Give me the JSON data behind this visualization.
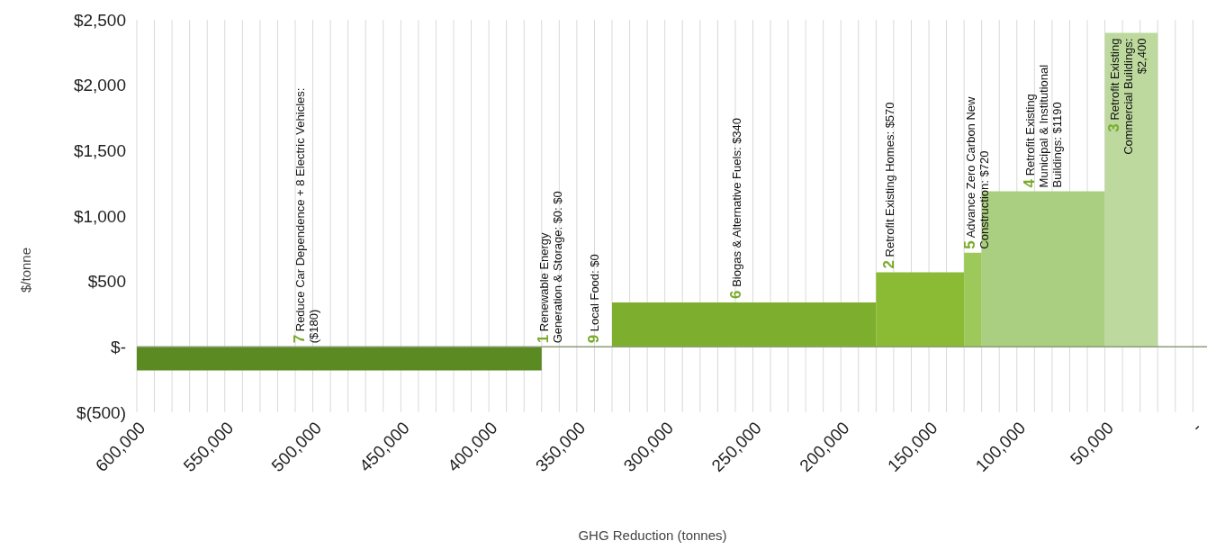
{
  "chart_data": {
    "type": "area",
    "xlabel": "GHG Reduction (tonnes)",
    "ylabel": "$/tonne",
    "xlim": [
      600000,
      -8000
    ],
    "ylim": [
      -500,
      2500
    ],
    "xticks": [
      {
        "value": 600000,
        "label": "600,000"
      },
      {
        "value": 590000,
        "label": null
      },
      {
        "value": 580000,
        "label": null
      },
      {
        "value": 570000,
        "label": null
      },
      {
        "value": 560000,
        "label": null
      },
      {
        "value": 550000,
        "label": "550,000"
      },
      {
        "value": 540000,
        "label": null
      },
      {
        "value": 530000,
        "label": null
      },
      {
        "value": 520000,
        "label": null
      },
      {
        "value": 510000,
        "label": null
      },
      {
        "value": 500000,
        "label": "500,000"
      },
      {
        "value": 490000,
        "label": null
      },
      {
        "value": 480000,
        "label": null
      },
      {
        "value": 470000,
        "label": null
      },
      {
        "value": 460000,
        "label": null
      },
      {
        "value": 450000,
        "label": "450,000"
      },
      {
        "value": 440000,
        "label": null
      },
      {
        "value": 430000,
        "label": null
      },
      {
        "value": 420000,
        "label": null
      },
      {
        "value": 410000,
        "label": null
      },
      {
        "value": 400000,
        "label": "400,000"
      },
      {
        "value": 390000,
        "label": null
      },
      {
        "value": 380000,
        "label": null
      },
      {
        "value": 370000,
        "label": null
      },
      {
        "value": 360000,
        "label": null
      },
      {
        "value": 350000,
        "label": "350,000"
      },
      {
        "value": 340000,
        "label": null
      },
      {
        "value": 330000,
        "label": null
      },
      {
        "value": 320000,
        "label": null
      },
      {
        "value": 310000,
        "label": null
      },
      {
        "value": 300000,
        "label": "300,000"
      },
      {
        "value": 290000,
        "label": null
      },
      {
        "value": 280000,
        "label": null
      },
      {
        "value": 270000,
        "label": null
      },
      {
        "value": 260000,
        "label": null
      },
      {
        "value": 250000,
        "label": "250,000"
      },
      {
        "value": 240000,
        "label": null
      },
      {
        "value": 230000,
        "label": null
      },
      {
        "value": 220000,
        "label": null
      },
      {
        "value": 210000,
        "label": null
      },
      {
        "value": 200000,
        "label": "200,000"
      },
      {
        "value": 190000,
        "label": null
      },
      {
        "value": 180000,
        "label": null
      },
      {
        "value": 170000,
        "label": null
      },
      {
        "value": 160000,
        "label": null
      },
      {
        "value": 150000,
        "label": "150,000"
      },
      {
        "value": 140000,
        "label": null
      },
      {
        "value": 130000,
        "label": null
      },
      {
        "value": 120000,
        "label": null
      },
      {
        "value": 110000,
        "label": null
      },
      {
        "value": 100000,
        "label": "100,000"
      },
      {
        "value": 90000,
        "label": null
      },
      {
        "value": 80000,
        "label": null
      },
      {
        "value": 70000,
        "label": null
      },
      {
        "value": 60000,
        "label": null
      },
      {
        "value": 50000,
        "label": "50,000"
      },
      {
        "value": 40000,
        "label": null
      },
      {
        "value": 30000,
        "label": null
      },
      {
        "value": 20000,
        "label": null
      },
      {
        "value": 10000,
        "label": null
      },
      {
        "value": 0,
        "label": "-"
      }
    ],
    "yticks": [
      {
        "value": 2500,
        "label": "$2,500"
      },
      {
        "value": 2000,
        "label": "$2,000"
      },
      {
        "value": 1500,
        "label": "$1,500"
      },
      {
        "value": 1000,
        "label": "$1,000"
      },
      {
        "value": 500,
        "label": "$500"
      },
      {
        "value": 0,
        "label": "$-"
      },
      {
        "value": -500,
        "label": "$(500)"
      }
    ],
    "grid": "x",
    "series": [
      {
        "color": "#5b8a22",
        "x": [
          600000,
          370000
        ],
        "values": [
          -180,
          -180
        ]
      },
      {
        "color": "#7dae2e",
        "x": [
          330000,
          180000
        ],
        "values": [
          340,
          340
        ]
      },
      {
        "color": "#8bbb34",
        "x": [
          180000,
          130000
        ],
        "values": [
          570,
          570
        ]
      },
      {
        "color": "#9dc95b",
        "x": [
          130000,
          120000
        ],
        "values": [
          720,
          720
        ]
      },
      {
        "color": "#abcf80",
        "x": [
          120000,
          50000
        ],
        "values": [
          1190,
          1190
        ]
      },
      {
        "color": "#bdd99e",
        "x": [
          50000,
          20000
        ],
        "values": [
          2400,
          2400
        ]
      }
    ],
    "annotations": [
      {
        "text": "7 Reduce Car Dependence + 8 Electric Vehicles: ($180)",
        "x": 505000,
        "y": 0
      },
      "1 Renewable Energy Generation & Storage: $0: $0",
      "9 Local Food: $0",
      {
        "text": "6 Biogas & Alternative Fuels: $340",
        "x": 257000,
        "y": 340
      },
      {
        "text": "2 Retrofit Existing Homes: $570",
        "x": 170000,
        "y": 570
      },
      {
        "text": "5 Advance Zero Carbon New Construction: $720",
        "x": 124000,
        "y": 720
      },
      {
        "text": "4 Retrofit Existing Municipal & Institutional Buildings: $1190",
        "x": 90000,
        "y": 1190
      },
      {
        "text": "3 Retrofit Existing Commercial Buildings: $2,400",
        "x": 42000,
        "y": 2400
      }
    ]
  }
}
